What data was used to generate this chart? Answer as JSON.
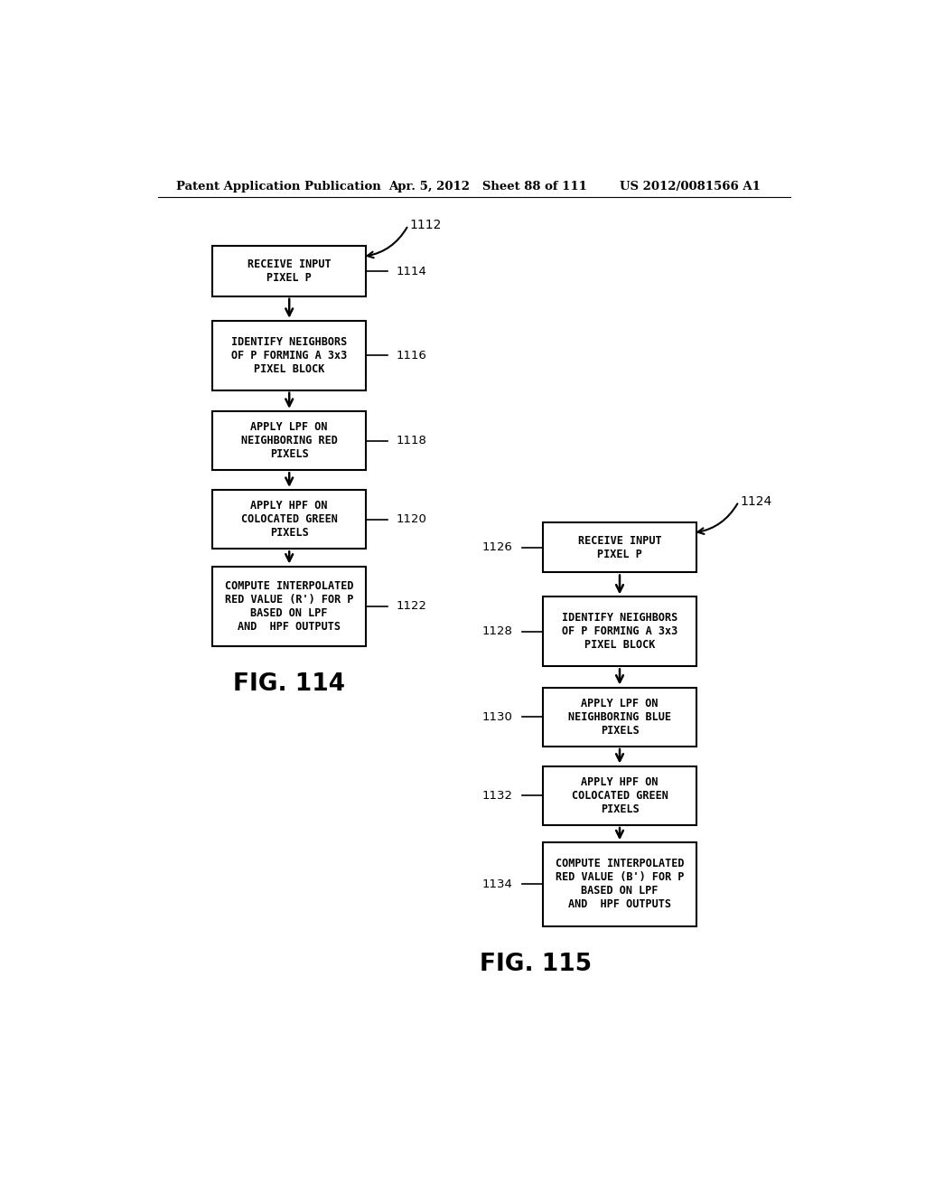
{
  "bg_color": "#ffffff",
  "header_left": "Patent Application Publication",
  "header_mid": "Apr. 5, 2012   Sheet 88 of 111",
  "header_right": "US 2012/0081566 A1",
  "fig114_label": "FIG. 114",
  "fig115_label": "FIG. 115",
  "label_1112": "1112",
  "label_1124": "1124",
  "left_boxes": [
    {
      "text": "RECEIVE INPUT\nPIXEL P",
      "label": "1114",
      "nlines": 2
    },
    {
      "text": "IDENTIFY NEIGHBORS\nOF P FORMING A 3x3\nPIXEL BLOCK",
      "label": "1116",
      "nlines": 3
    },
    {
      "text": "APPLY LPF ON\nNEIGHBORING RED\nPIXELS",
      "label": "1118",
      "nlines": 3
    },
    {
      "text": "APPLY HPF ON\nCOLOCATED GREEN\nPIXELS",
      "label": "1120",
      "nlines": 3
    },
    {
      "text": "COMPUTE INTERPOLATED\nRED VALUE (R') FOR P\nBASED ON LPF\nAND  HPF OUTPUTS",
      "label": "1122",
      "nlines": 4
    }
  ],
  "right_boxes": [
    {
      "text": "RECEIVE INPUT\nPIXEL P",
      "label": "1126",
      "nlines": 2
    },
    {
      "text": "IDENTIFY NEIGHBORS\nOF P FORMING A 3x3\nPIXEL BLOCK",
      "label": "1128",
      "nlines": 3
    },
    {
      "text": "APPLY LPF ON\nNEIGHBORING BLUE\nPIXELS",
      "label": "1130",
      "nlines": 3
    },
    {
      "text": "APPLY HPF ON\nCOLOCATED GREEN\nPIXELS",
      "label": "1132",
      "nlines": 3
    },
    {
      "text": "COMPUTE INTERPOLATED\nRED VALUE (B') FOR P\nBASED ON LPF\nAND  HPF OUTPUTS",
      "label": "1134",
      "nlines": 4
    }
  ]
}
